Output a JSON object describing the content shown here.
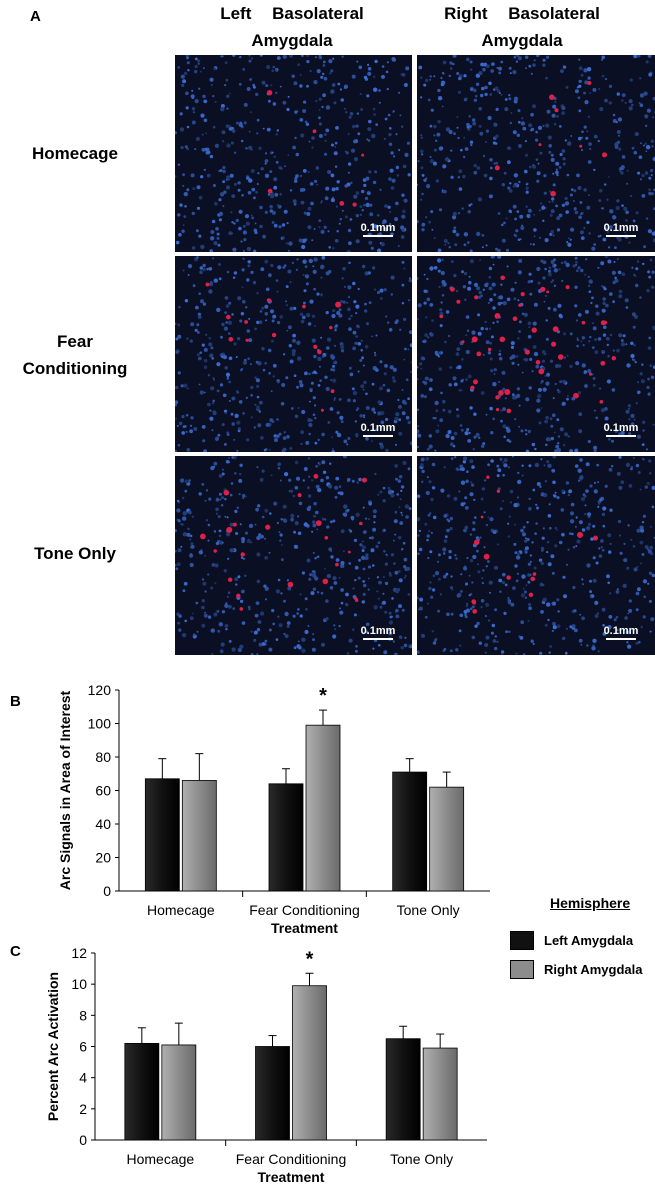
{
  "panel_labels": {
    "a": "A",
    "b": "B",
    "c": "C"
  },
  "columns": [
    {
      "line1": "Left Basolateral",
      "line2": "Amygdala"
    },
    {
      "line1": "Right Basolateral",
      "line2": "Amygdala"
    }
  ],
  "rows": [
    {
      "line1": "Homecage",
      "line2": ""
    },
    {
      "line1": "Fear",
      "line2": "Conditioning"
    },
    {
      "line1": "Tone Only",
      "line2": ""
    }
  ],
  "scale_bar_label": "0.1mm",
  "colors": {
    "background_stain": "#0a0f24",
    "nuclei": "#3d6fd6",
    "arc_signal": "#e0204a",
    "left_amygdala": "#111111",
    "right_amygdala": "#8c8c8c"
  },
  "legend": {
    "title": "Hemisphere",
    "items": [
      {
        "label": "Left Amygdala",
        "color": "#111111"
      },
      {
        "label": "Right Amygdala",
        "color": "#8c8c8c"
      }
    ]
  },
  "chart_data": [
    {
      "type": "bar",
      "panel": "B",
      "categories": [
        "Homecage",
        "Fear Conditioning",
        "Tone Only"
      ],
      "series": [
        {
          "name": "Left Amygdala",
          "values": [
            67,
            64,
            71
          ],
          "errors": [
            12,
            9,
            8
          ]
        },
        {
          "name": "Right Amygdala",
          "values": [
            66,
            99,
            62
          ],
          "errors": [
            16,
            9,
            9
          ]
        }
      ],
      "xlabel": "Treatment",
      "ylabel": "Arc Signals in Area of Interest",
      "ylim": [
        0,
        120
      ],
      "yticks": [
        0,
        20,
        40,
        60,
        80,
        100,
        120
      ],
      "significance": [
        {
          "category": "Fear Conditioning",
          "series": "Right Amygdala",
          "marker": "*"
        }
      ],
      "grid": false
    },
    {
      "type": "bar",
      "panel": "C",
      "categories": [
        "Homecage",
        "Fear Conditioning",
        "Tone Only"
      ],
      "series": [
        {
          "name": "Left Amygdala",
          "values": [
            6.2,
            6.0,
            6.5
          ],
          "errors": [
            1.0,
            0.7,
            0.8
          ]
        },
        {
          "name": "Right Amygdala",
          "values": [
            6.1,
            9.9,
            5.9
          ],
          "errors": [
            1.4,
            0.8,
            0.9
          ]
        }
      ],
      "xlabel": "Treatment",
      "ylabel": "Percent Arc Activation",
      "ylim": [
        0,
        12
      ],
      "yticks": [
        0,
        2,
        4,
        6,
        8,
        10,
        12
      ],
      "significance": [
        {
          "category": "Fear Conditioning",
          "series": "Right Amygdala",
          "marker": "*"
        }
      ],
      "grid": false
    }
  ]
}
